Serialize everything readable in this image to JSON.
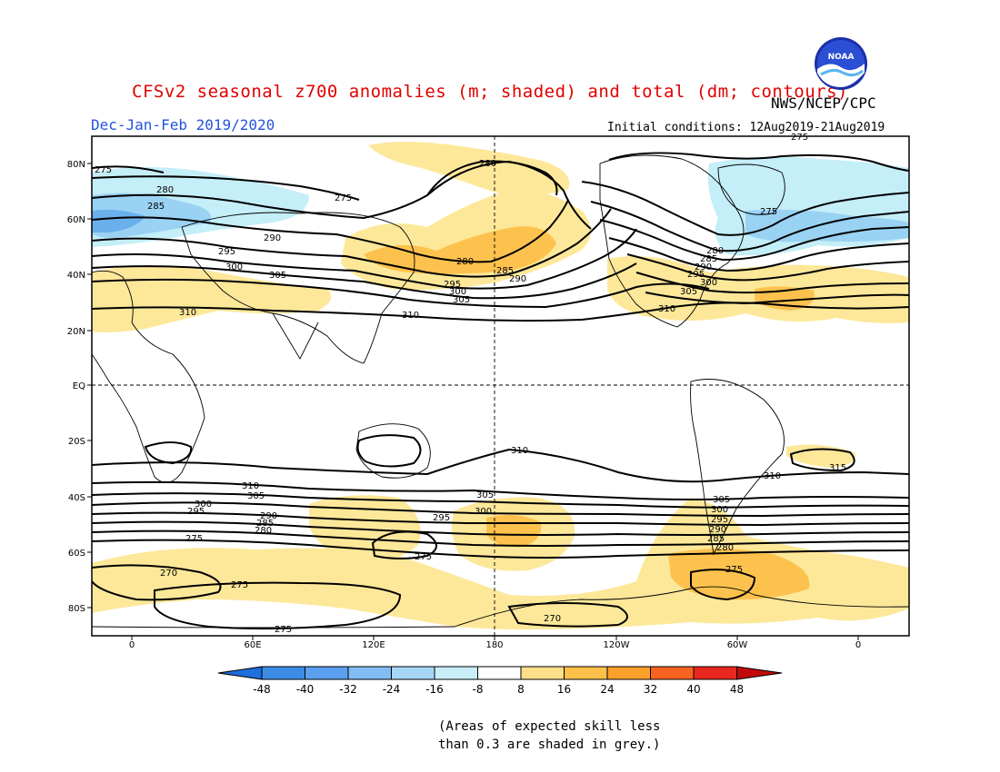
{
  "title": "CFSv2 seasonal z700 anomalies (m; shaded) and total (dm; contours)",
  "season": "Dec-Jan-Feb 2019/2020",
  "agency": "NWS/NCEP/CPC",
  "initial_conditions": "Initial conditions: 12Aug2019-21Aug2019",
  "note_line1": "(Areas of expected skill less",
  "note_line2": "than 0.3 are shaded in grey.)",
  "logo_text": "NOAA",
  "map": {
    "lat_labels": [
      "80N",
      "60N",
      "40N",
      "20N",
      "EQ",
      "20S",
      "40S",
      "60S",
      "80S"
    ],
    "lon_labels": [
      "0",
      "60E",
      "120E",
      "180",
      "120W",
      "60W",
      "0"
    ],
    "contour_labels": [
      "275",
      "280",
      "285",
      "290",
      "295",
      "300",
      "305",
      "310",
      "315",
      "270"
    ]
  },
  "colorbar": {
    "tick_labels": [
      "-48",
      "-40",
      "-32",
      "-24",
      "-16",
      "-8",
      "8",
      "16",
      "24",
      "32",
      "40",
      "48"
    ],
    "colors": [
      "#1e6edc",
      "#3c8ce6",
      "#5aa0ee",
      "#82bcf4",
      "#a6d6f6",
      "#c8eef8",
      "#ffffff",
      "#fee08a",
      "#fdc04a",
      "#fba02a",
      "#f86420",
      "#e8281e",
      "#c00a0a"
    ]
  },
  "colors": {
    "pos_light": "#fde89a",
    "pos_mid": "#fdc24e",
    "pos_dark": "#f9a838",
    "neg_light": "#c4eef8",
    "neg_mid": "#9ad2f4",
    "neg_dark": "#6ab0ec"
  }
}
